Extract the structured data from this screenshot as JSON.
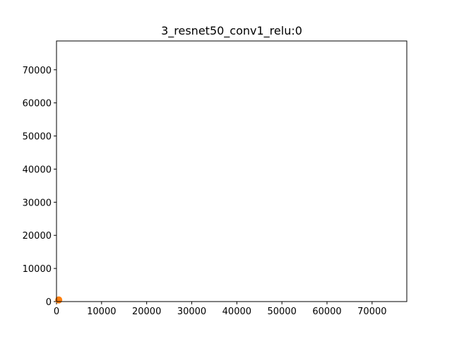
{
  "chart_data": {
    "type": "scatter",
    "title": "3_resnet50_conv1_relu:0",
    "xlabel": "",
    "ylabel": "",
    "xlim": [
      0,
      77700
    ],
    "ylim": [
      0,
      78700
    ],
    "xticks": [
      0,
      10000,
      20000,
      30000,
      40000,
      50000,
      60000,
      70000
    ],
    "yticks": [
      0,
      10000,
      20000,
      30000,
      40000,
      50000,
      60000,
      70000
    ],
    "grid": false,
    "series": [
      {
        "color": "#ff7f0e",
        "points": [
          {
            "x": 500,
            "y": 500
          }
        ]
      }
    ]
  }
}
